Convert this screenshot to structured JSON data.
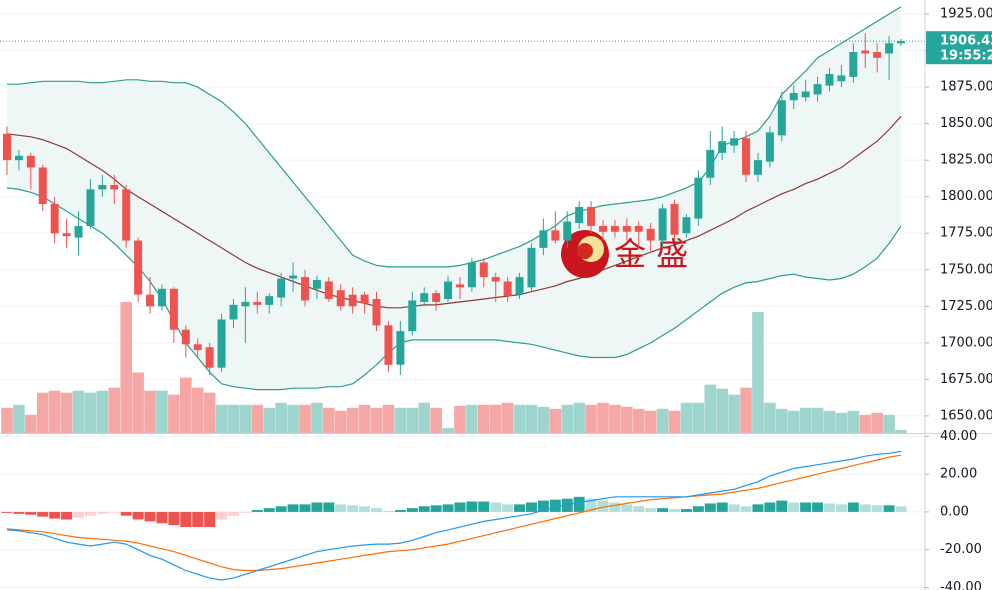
{
  "chart_data": [
    {
      "type": "candlestick",
      "ylim": [
        1639,
        1934.6
      ],
      "yticks": [
        {
          "value": 1650,
          "label": "1650.00"
        },
        {
          "value": 1675,
          "label": "1675.00"
        },
        {
          "value": 1700,
          "label": "1700.00"
        },
        {
          "value": 1725,
          "label": "1725.00"
        },
        {
          "value": 1750,
          "label": "1750.00"
        },
        {
          "value": 1775,
          "label": "1775.00"
        },
        {
          "value": 1800,
          "label": "1800.00"
        },
        {
          "value": 1825,
          "label": "1825.00"
        },
        {
          "value": 1850,
          "label": "1850.00"
        },
        {
          "value": 1875,
          "label": "1875.00"
        },
        {
          "value": 1900,
          "label": "1900.00"
        },
        {
          "value": 1925,
          "label": "1925.00"
        }
      ],
      "grid": true,
      "open": [
        1843,
        1825,
        1828,
        1820,
        1795,
        1775,
        1772,
        1780,
        1805,
        1808,
        1805,
        1770,
        1733,
        1725,
        1737,
        1709,
        1699,
        1697,
        1683,
        1716,
        1725,
        1728,
        1726,
        1731,
        1744,
        1745,
        1737,
        1742,
        1736,
        1733,
        1733,
        1730,
        1712,
        1685,
        1708,
        1728,
        1734,
        1730,
        1740,
        1738,
        1755,
        1745,
        1742,
        1733,
        1738,
        1765,
        1777,
        1770,
        1782,
        1793,
        1780,
        1780,
        1780,
        1780,
        1778,
        1770,
        1795,
        1775,
        1785,
        1813,
        1830,
        1835,
        1840,
        1815,
        1824,
        1842,
        1866,
        1868,
        1870,
        1876,
        1879,
        1882,
        1900,
        1899,
        1898,
        1905
      ],
      "high": [
        1848,
        1832,
        1830,
        1822,
        1800,
        1785,
        1790,
        1812,
        1815,
        1815,
        1808,
        1772,
        1745,
        1740,
        1738,
        1712,
        1703,
        1700,
        1720,
        1730,
        1738,
        1735,
        1734,
        1748,
        1755,
        1750,
        1746,
        1745,
        1740,
        1738,
        1735,
        1735,
        1715,
        1715,
        1735,
        1738,
        1736,
        1746,
        1745,
        1758,
        1758,
        1748,
        1745,
        1748,
        1768,
        1785,
        1790,
        1790,
        1797,
        1797,
        1784,
        1784,
        1785,
        1783,
        1782,
        1795,
        1798,
        1788,
        1818,
        1845,
        1848,
        1845,
        1845,
        1830,
        1848,
        1872,
        1876,
        1880,
        1882,
        1888,
        1890,
        1905,
        1912,
        1905,
        1910,
        1908
      ],
      "low": [
        1815,
        1818,
        1805,
        1790,
        1768,
        1765,
        1760,
        1778,
        1800,
        1795,
        1765,
        1728,
        1720,
        1722,
        1700,
        1690,
        1690,
        1678,
        1680,
        1710,
        1700,
        1720,
        1720,
        1725,
        1735,
        1725,
        1730,
        1728,
        1722,
        1720,
        1720,
        1708,
        1680,
        1678,
        1705,
        1725,
        1722,
        1728,
        1730,
        1735,
        1738,
        1728,
        1728,
        1730,
        1735,
        1760,
        1768,
        1765,
        1778,
        1775,
        1770,
        1772,
        1770,
        1765,
        1762,
        1765,
        1770,
        1772,
        1780,
        1808,
        1825,
        1830,
        1810,
        1810,
        1820,
        1838,
        1860,
        1865,
        1865,
        1872,
        1875,
        1878,
        1888,
        1885,
        1880,
        1903
      ],
      "close": [
        1825,
        1828,
        1820,
        1795,
        1775,
        1773,
        1780,
        1805,
        1808,
        1805,
        1770,
        1733,
        1725,
        1737,
        1709,
        1699,
        1695,
        1683,
        1716,
        1726,
        1728,
        1726,
        1732,
        1744,
        1746,
        1729,
        1743,
        1730,
        1725,
        1725,
        1727,
        1712,
        1685,
        1708,
        1729,
        1734,
        1728,
        1742,
        1738,
        1755,
        1745,
        1742,
        1732,
        1745,
        1765,
        1777,
        1770,
        1783,
        1793,
        1780,
        1776,
        1776,
        1776,
        1776,
        1770,
        1792,
        1774,
        1786,
        1813,
        1832,
        1838,
        1840,
        1815,
        1825,
        1844,
        1866,
        1871,
        1872,
        1877,
        1884,
        1883,
        1899,
        1898,
        1895,
        1905,
        1906.42
      ],
      "volume": [
        25,
        28,
        18,
        40,
        42,
        40,
        42,
        40,
        42,
        45,
        130,
        60,
        42,
        42,
        38,
        55,
        45,
        40,
        28,
        28,
        28,
        28,
        25,
        30,
        28,
        28,
        30,
        25,
        22,
        25,
        28,
        25,
        28,
        25,
        25,
        30,
        25,
        5,
        27,
        28,
        28,
        28,
        30,
        28,
        28,
        26,
        24,
        28,
        30,
        28,
        30,
        28,
        26,
        24,
        22,
        24,
        22,
        30,
        30,
        48,
        44,
        38,
        45,
        120,
        30,
        24,
        22,
        25,
        25,
        22,
        20,
        22,
        18,
        20,
        18,
        3
      ],
      "upper": [
        1877,
        1877,
        1878,
        1879,
        1879,
        1879,
        1879,
        1878,
        1878,
        1879,
        1880,
        1880,
        1879,
        1879,
        1878,
        1878,
        1875,
        1870,
        1865,
        1858,
        1850,
        1840,
        1830,
        1820,
        1810,
        1800,
        1790,
        1780,
        1770,
        1760,
        1756,
        1753,
        1752,
        1752,
        1752,
        1752,
        1752,
        1752,
        1753,
        1755,
        1757,
        1760,
        1763,
        1766,
        1770,
        1775,
        1780,
        1787,
        1790,
        1792,
        1794,
        1795,
        1796,
        1797,
        1798,
        1800,
        1803,
        1806,
        1810,
        1820,
        1835,
        1838,
        1841,
        1845,
        1855,
        1870,
        1878,
        1886,
        1895,
        1900,
        1905,
        1910,
        1915,
        1920,
        1925,
        1930
      ],
      "middle": [
        1843,
        1842,
        1841,
        1839,
        1836,
        1833,
        1828,
        1823,
        1818,
        1812,
        1805,
        1800,
        1795,
        1790,
        1785,
        1780,
        1775,
        1770,
        1765,
        1760,
        1755,
        1751,
        1748,
        1745,
        1742,
        1739,
        1736,
        1733,
        1731,
        1729,
        1727,
        1725,
        1724,
        1724,
        1725,
        1726,
        1726,
        1727,
        1728,
        1729,
        1730,
        1731,
        1732,
        1733,
        1735,
        1737,
        1739,
        1742,
        1744,
        1747,
        1750,
        1753,
        1756,
        1759,
        1762,
        1765,
        1767,
        1770,
        1773,
        1777,
        1781,
        1785,
        1790,
        1794,
        1798,
        1802,
        1805,
        1809,
        1812,
        1816,
        1820,
        1826,
        1832,
        1838,
        1846,
        1855
      ],
      "lower": [
        1806,
        1805,
        1803,
        1800,
        1795,
        1790,
        1785,
        1780,
        1775,
        1768,
        1760,
        1752,
        1742,
        1730,
        1715,
        1700,
        1690,
        1680,
        1672,
        1670,
        1669,
        1668,
        1668,
        1668,
        1669,
        1669,
        1669,
        1670,
        1670,
        1672,
        1678,
        1685,
        1693,
        1700,
        1702,
        1702,
        1702,
        1702,
        1702,
        1702,
        1702,
        1702,
        1701,
        1700,
        1699,
        1697,
        1695,
        1693,
        1691,
        1690,
        1690,
        1690,
        1692,
        1696,
        1700,
        1705,
        1710,
        1716,
        1722,
        1728,
        1734,
        1738,
        1741,
        1742,
        1744,
        1746,
        1747,
        1745,
        1744,
        1743,
        1744,
        1747,
        1752,
        1758,
        1768,
        1780
      ],
      "countdown": "19:55:2",
      "watermark": "金 盛",
      "colors": {
        "up": "#26a69a",
        "down": "#ef5350",
        "up_volume": "#9fd5cf",
        "down_volume": "#f5a7a6",
        "band": "#2a9d8f",
        "band_fill": "#eef7f6",
        "middle": "#8d3a35"
      }
    },
    {
      "type": "macd",
      "ylim": [
        -41.3,
        40.7
      ],
      "yticks": [
        {
          "value": 40,
          "label": "40.00"
        },
        {
          "value": 20,
          "label": "20.00"
        },
        {
          "value": 0,
          "label": "0.00"
        },
        {
          "value": -20,
          "label": "-20.00"
        },
        {
          "value": -40,
          "label": "-40.00"
        }
      ],
      "grid": true,
      "histogram": [
        -0.5,
        -1,
        -1.5,
        -2.5,
        -3.5,
        -4,
        -3,
        -2,
        -1,
        -0.5,
        -2,
        -4,
        -5,
        -6,
        -7,
        -8,
        -8,
        -8,
        -4,
        -2,
        -0.5,
        1,
        2,
        3,
        4,
        4,
        5,
        5,
        4,
        3.5,
        3,
        2,
        0.5,
        1,
        2,
        3,
        3.5,
        4,
        5,
        5.5,
        5.5,
        5,
        4,
        4,
        5,
        6,
        6.5,
        7,
        8,
        7,
        6,
        5,
        4,
        3,
        2,
        2,
        1.5,
        1.5,
        3,
        4.5,
        5,
        4,
        3,
        4,
        5,
        6,
        5,
        5,
        5,
        4.5,
        4,
        5,
        4,
        3.5,
        3.5,
        3
      ],
      "dif": [
        -9.5,
        -10,
        -11,
        -12,
        -14,
        -16,
        -17,
        -18,
        -17,
        -16,
        -17,
        -20,
        -23,
        -25,
        -28,
        -31,
        -33,
        -35,
        -36,
        -35,
        -33,
        -31,
        -29,
        -27,
        -25,
        -23,
        -21,
        -20,
        -19,
        -18,
        -17.5,
        -17,
        -17,
        -16.5,
        -15,
        -13,
        -11,
        -9.5,
        -8,
        -6.5,
        -5,
        -4,
        -3,
        -2,
        -1,
        1,
        2.5,
        4,
        5,
        6,
        7,
        8,
        8,
        8,
        8,
        8,
        8,
        8,
        9,
        10,
        11,
        12,
        14,
        16,
        19,
        21,
        23,
        24,
        25,
        26,
        27,
        28,
        29.5,
        30.5,
        31,
        32
      ],
      "dea": [
        -9,
        -9.5,
        -10,
        -10.5,
        -11.5,
        -12.5,
        -13.5,
        -14,
        -14.5,
        -15,
        -15.5,
        -16.5,
        -18,
        -19.5,
        -21,
        -23,
        -25,
        -27,
        -29,
        -30.5,
        -31,
        -31,
        -30.5,
        -30,
        -29,
        -28,
        -27,
        -26,
        -25,
        -24,
        -23,
        -22,
        -21,
        -20.5,
        -20,
        -19,
        -18,
        -17,
        -15.5,
        -14,
        -12.5,
        -11,
        -9.5,
        -8,
        -6.5,
        -5,
        -3.5,
        -2,
        -0.5,
        1,
        2.5,
        3.5,
        4.5,
        5.5,
        6.5,
        7,
        7.5,
        8,
        8.5,
        9,
        9.5,
        10.5,
        11.5,
        12.5,
        14,
        15.5,
        17,
        18.5,
        20,
        21.5,
        23,
        24.5,
        26,
        27.5,
        29,
        30
      ],
      "colors": {
        "dif": "#2196f3",
        "dea": "#ff6d00",
        "up_strong": "#26a69a",
        "up_weak": "#b2dfdb",
        "down_strong": "#ef5350",
        "down_weak": "#ffcdd2"
      }
    }
  ]
}
